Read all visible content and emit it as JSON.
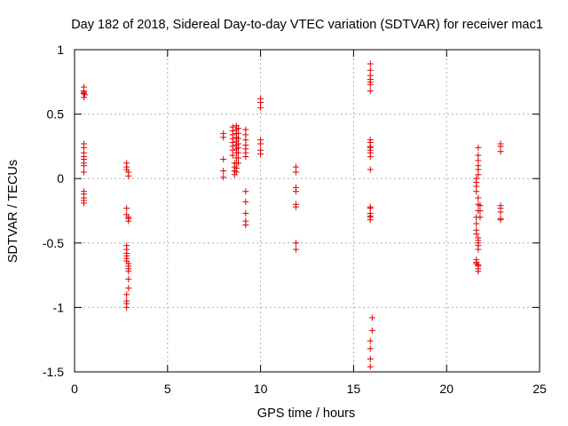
{
  "chart_data": {
    "type": "scatter",
    "title": "Day 182 of 2018, Sidereal Day-to-day VTEC variation (SDTVAR) for receiver mac1",
    "xlabel": "GPS time / hours",
    "ylabel": "SDTVAR / TECUs",
    "xlim": [
      0,
      25
    ],
    "ylim": [
      -1.5,
      1
    ],
    "xticks": [
      0,
      5,
      10,
      15,
      20,
      25
    ],
    "yticks": [
      -1.5,
      -1,
      -0.5,
      0,
      0.5,
      1
    ],
    "xtick_labels": [
      "0",
      "5",
      "10",
      "15",
      "20",
      "25"
    ],
    "ytick_labels": [
      "-1.5",
      "-1",
      "-0.5",
      "0",
      "0.5",
      "1"
    ],
    "grid": true,
    "marker": "+",
    "series": [
      {
        "name": "SDTVAR",
        "color": "#e00000",
        "points": [
          [
            0.5,
            0.71
          ],
          [
            0.5,
            0.68
          ],
          [
            0.5,
            0.67
          ],
          [
            0.5,
            0.66
          ],
          [
            0.5,
            0.66
          ],
          [
            0.55,
            0.65
          ],
          [
            0.5,
            0.63
          ],
          [
            0.5,
            0.27
          ],
          [
            0.5,
            0.24
          ],
          [
            0.5,
            0.2
          ],
          [
            0.5,
            0.17
          ],
          [
            0.5,
            0.15
          ],
          [
            0.5,
            0.12
          ],
          [
            0.5,
            0.1
          ],
          [
            0.5,
            0.05
          ],
          [
            0.5,
            -0.1
          ],
          [
            0.5,
            -0.12
          ],
          [
            0.5,
            -0.15
          ],
          [
            0.5,
            -0.17
          ],
          [
            0.5,
            -0.19
          ],
          [
            2.8,
            0.12
          ],
          [
            2.8,
            0.09
          ],
          [
            2.8,
            0.07
          ],
          [
            2.9,
            0.05
          ],
          [
            2.9,
            0.02
          ],
          [
            2.8,
            -0.23
          ],
          [
            2.8,
            -0.28
          ],
          [
            2.9,
            -0.3
          ],
          [
            2.9,
            -0.31
          ],
          [
            2.9,
            -0.33
          ],
          [
            2.8,
            -0.52
          ],
          [
            2.8,
            -0.55
          ],
          [
            2.8,
            -0.58
          ],
          [
            2.8,
            -0.6
          ],
          [
            2.8,
            -0.62
          ],
          [
            2.8,
            -0.64
          ],
          [
            2.9,
            -0.66
          ],
          [
            2.9,
            -0.68
          ],
          [
            2.9,
            -0.7
          ],
          [
            2.9,
            -0.72
          ],
          [
            2.9,
            -0.78
          ],
          [
            2.9,
            -0.85
          ],
          [
            2.8,
            -0.9
          ],
          [
            2.8,
            -0.95
          ],
          [
            2.8,
            -0.97
          ],
          [
            2.8,
            -1.0
          ],
          [
            8.0,
            0.35
          ],
          [
            8.0,
            0.32
          ],
          [
            8.0,
            0.15
          ],
          [
            8.0,
            0.06
          ],
          [
            8.0,
            0.01
          ],
          [
            8.5,
            0.4
          ],
          [
            8.5,
            0.37
          ],
          [
            8.5,
            0.34
          ],
          [
            8.5,
            0.31
          ],
          [
            8.5,
            0.28
          ],
          [
            8.5,
            0.25
          ],
          [
            8.5,
            0.22
          ],
          [
            8.5,
            0.18
          ],
          [
            8.6,
            0.12
          ],
          [
            8.6,
            0.09
          ],
          [
            8.6,
            0.06
          ],
          [
            8.6,
            0.03
          ],
          [
            8.7,
            0.41
          ],
          [
            8.7,
            0.38
          ],
          [
            8.7,
            0.35
          ],
          [
            8.7,
            0.32
          ],
          [
            8.7,
            0.29
          ],
          [
            8.7,
            0.26
          ],
          [
            8.7,
            0.23
          ],
          [
            8.7,
            0.2
          ],
          [
            8.7,
            0.16
          ],
          [
            8.7,
            0.12
          ],
          [
            8.7,
            0.08
          ],
          [
            8.7,
            0.05
          ],
          [
            8.8,
            0.39
          ],
          [
            8.8,
            0.35
          ],
          [
            8.8,
            0.31
          ],
          [
            8.8,
            0.27
          ],
          [
            8.8,
            0.24
          ],
          [
            8.8,
            0.2
          ],
          [
            8.8,
            0.16
          ],
          [
            8.8,
            0.12
          ],
          [
            9.2,
            0.38
          ],
          [
            9.2,
            0.34
          ],
          [
            9.2,
            0.3
          ],
          [
            9.2,
            0.26
          ],
          [
            9.2,
            0.23
          ],
          [
            9.2,
            0.2
          ],
          [
            9.2,
            0.17
          ],
          [
            9.2,
            -0.1
          ],
          [
            9.2,
            -0.18
          ],
          [
            9.2,
            -0.27
          ],
          [
            9.2,
            -0.33
          ],
          [
            9.2,
            -0.36
          ],
          [
            10.0,
            0.62
          ],
          [
            10.0,
            0.59
          ],
          [
            10.0,
            0.55
          ],
          [
            10.0,
            0.3
          ],
          [
            10.0,
            0.27
          ],
          [
            10.0,
            0.22
          ],
          [
            10.0,
            0.19
          ],
          [
            11.9,
            0.09
          ],
          [
            11.9,
            0.05
          ],
          [
            11.9,
            -0.07
          ],
          [
            11.9,
            -0.1
          ],
          [
            11.9,
            -0.2
          ],
          [
            11.9,
            -0.22
          ],
          [
            11.9,
            -0.5
          ],
          [
            11.9,
            -0.55
          ],
          [
            15.9,
            0.89
          ],
          [
            15.9,
            0.84
          ],
          [
            15.9,
            0.8
          ],
          [
            15.9,
            0.77
          ],
          [
            15.9,
            0.75
          ],
          [
            15.9,
            0.73
          ],
          [
            15.9,
            0.68
          ],
          [
            15.9,
            0.3
          ],
          [
            15.9,
            0.28
          ],
          [
            15.9,
            0.25
          ],
          [
            15.9,
            0.24
          ],
          [
            15.9,
            0.22
          ],
          [
            15.9,
            0.2
          ],
          [
            15.9,
            0.17
          ],
          [
            15.9,
            0.07
          ],
          [
            15.9,
            -0.22
          ],
          [
            15.9,
            -0.23
          ],
          [
            15.9,
            -0.27
          ],
          [
            15.9,
            -0.29
          ],
          [
            15.9,
            -0.3
          ],
          [
            15.9,
            -0.32
          ],
          [
            16.0,
            -1.08
          ],
          [
            16.0,
            -1.18
          ],
          [
            15.9,
            -1.26
          ],
          [
            15.9,
            -1.32
          ],
          [
            15.9,
            -1.4
          ],
          [
            15.9,
            -1.46
          ],
          [
            21.7,
            0.24
          ],
          [
            21.7,
            0.18
          ],
          [
            21.7,
            0.14
          ],
          [
            21.7,
            0.1
          ],
          [
            21.7,
            0.07
          ],
          [
            21.7,
            0.03
          ],
          [
            21.6,
            0.0
          ],
          [
            21.6,
            -0.03
          ],
          [
            21.6,
            -0.06
          ],
          [
            21.6,
            -0.1
          ],
          [
            21.7,
            -0.15
          ],
          [
            21.7,
            -0.2
          ],
          [
            21.7,
            -0.25
          ],
          [
            21.6,
            -0.3
          ],
          [
            21.6,
            -0.35
          ],
          [
            21.6,
            -0.4
          ],
          [
            21.6,
            -0.43
          ],
          [
            21.7,
            -0.46
          ],
          [
            21.7,
            -0.48
          ],
          [
            21.7,
            -0.5
          ],
          [
            21.7,
            -0.52
          ],
          [
            21.7,
            -0.55
          ],
          [
            21.6,
            -0.63
          ],
          [
            21.6,
            -0.65
          ],
          [
            21.6,
            -0.66
          ],
          [
            21.7,
            -0.67
          ],
          [
            21.7,
            -0.68
          ],
          [
            21.7,
            -0.7
          ],
          [
            21.7,
            -0.72
          ],
          [
            21.8,
            -0.21
          ],
          [
            21.8,
            -0.25
          ],
          [
            21.8,
            -0.3
          ],
          [
            22.9,
            0.27
          ],
          [
            22.9,
            0.25
          ],
          [
            22.9,
            0.21
          ],
          [
            22.9,
            -0.21
          ],
          [
            22.9,
            -0.23
          ],
          [
            22.9,
            -0.26
          ],
          [
            22.9,
            -0.31
          ],
          [
            22.9,
            -0.32
          ]
        ]
      }
    ]
  }
}
